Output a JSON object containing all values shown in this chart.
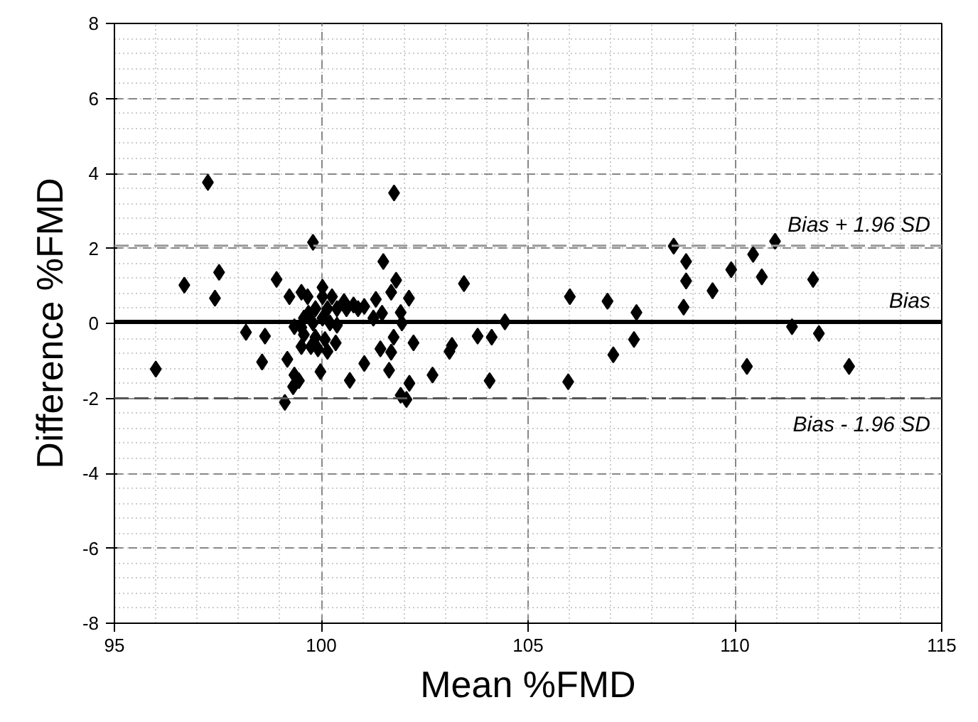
{
  "chart_data": {
    "type": "scatter",
    "xlabel": "Mean %FMD",
    "ylabel": "Difference %FMD",
    "xlim": [
      95,
      115
    ],
    "ylim": [
      -8,
      8
    ],
    "xticks": [
      95,
      100,
      105,
      110,
      115
    ],
    "yticks": [
      -8,
      -6,
      -4,
      -2,
      0,
      2,
      4,
      6,
      8
    ],
    "grid": true,
    "marker": "diamond",
    "series": [
      {
        "color": "#000000",
        "x": [
          96.0,
          97.26,
          101.76,
          99.8,
          96.69,
          97.53,
          97.43,
          98.92,
          98.18,
          98.64,
          98.57,
          99.18,
          101.5,
          101.81,
          101.69,
          102.12,
          101.92,
          101.95,
          102.23,
          101.75,
          101.43,
          101.69,
          101.04,
          101.64,
          102.13,
          101.92,
          102.06,
          100.69,
          99.98,
          99.12,
          99.32,
          99.46,
          99.35,
          99.23,
          99.52,
          99.67,
          100.03,
          100.03,
          100.26,
          100.55,
          100.78,
          101.04,
          101.32,
          101.47,
          101.26,
          100.89,
          100.61,
          100.38,
          100.15,
          99.86,
          99.69,
          99.58,
          99.35,
          99.52,
          99.8,
          100.03,
          100.21,
          100.38,
          99.58,
          99.86,
          100.09,
          99.52,
          99.75,
          99.92,
          100.15,
          100.35,
          103.45,
          102.69,
          103.1,
          103.16,
          103.78,
          104.12,
          104.07,
          104.44,
          106.01,
          105.97,
          106.92,
          107.06,
          107.62,
          107.56,
          108.52,
          108.82,
          108.82,
          108.76,
          109.46,
          109.91,
          110.44,
          110.65,
          110.97,
          111.89,
          111.38,
          112.03,
          110.29,
          112.76
        ],
        "values": [
          -1.22,
          3.76,
          3.48,
          2.16,
          1.02,
          1.36,
          0.67,
          1.17,
          -0.24,
          -0.34,
          -1.03,
          -0.96,
          1.65,
          1.15,
          0.83,
          0.67,
          0.29,
          0.01,
          -0.52,
          -0.37,
          -0.68,
          -0.77,
          -1.07,
          -1.25,
          -1.6,
          -1.92,
          -2.03,
          -1.52,
          -1.29,
          -2.11,
          -1.69,
          -1.53,
          -1.38,
          0.71,
          0.83,
          0.71,
          0.96,
          0.71,
          0.71,
          0.58,
          0.49,
          0.45,
          0.64,
          0.27,
          0.14,
          0.39,
          0.39,
          0.39,
          0.39,
          0.39,
          0.27,
          0.14,
          -0.09,
          -0.11,
          0.01,
          0.14,
          0.01,
          -0.05,
          -0.3,
          -0.37,
          -0.43,
          -0.62,
          -0.62,
          -0.68,
          -0.75,
          -0.52,
          1.06,
          -1.38,
          -0.75,
          -0.59,
          -0.34,
          -0.37,
          -1.53,
          0.04,
          0.71,
          -1.56,
          0.59,
          -0.84,
          0.29,
          -0.43,
          2.06,
          1.65,
          1.13,
          0.43,
          0.87,
          1.43,
          1.84,
          1.24,
          2.19,
          1.17,
          -0.09,
          -0.27,
          -1.15,
          -1.15
        ]
      }
    ],
    "ref_lines": [
      {
        "axis": "y",
        "value": 2.07,
        "label": "Bias + 1.96 SD",
        "color": "#999999",
        "line_style": "dashed"
      },
      {
        "axis": "y",
        "value": 0.04,
        "label": "Bias",
        "color": "#000000",
        "line_style": "solid"
      },
      {
        "axis": "y",
        "value": -2.0,
        "label": "Bias - 1.96 SD",
        "color": "#555555",
        "line_style": "dashed"
      }
    ]
  }
}
